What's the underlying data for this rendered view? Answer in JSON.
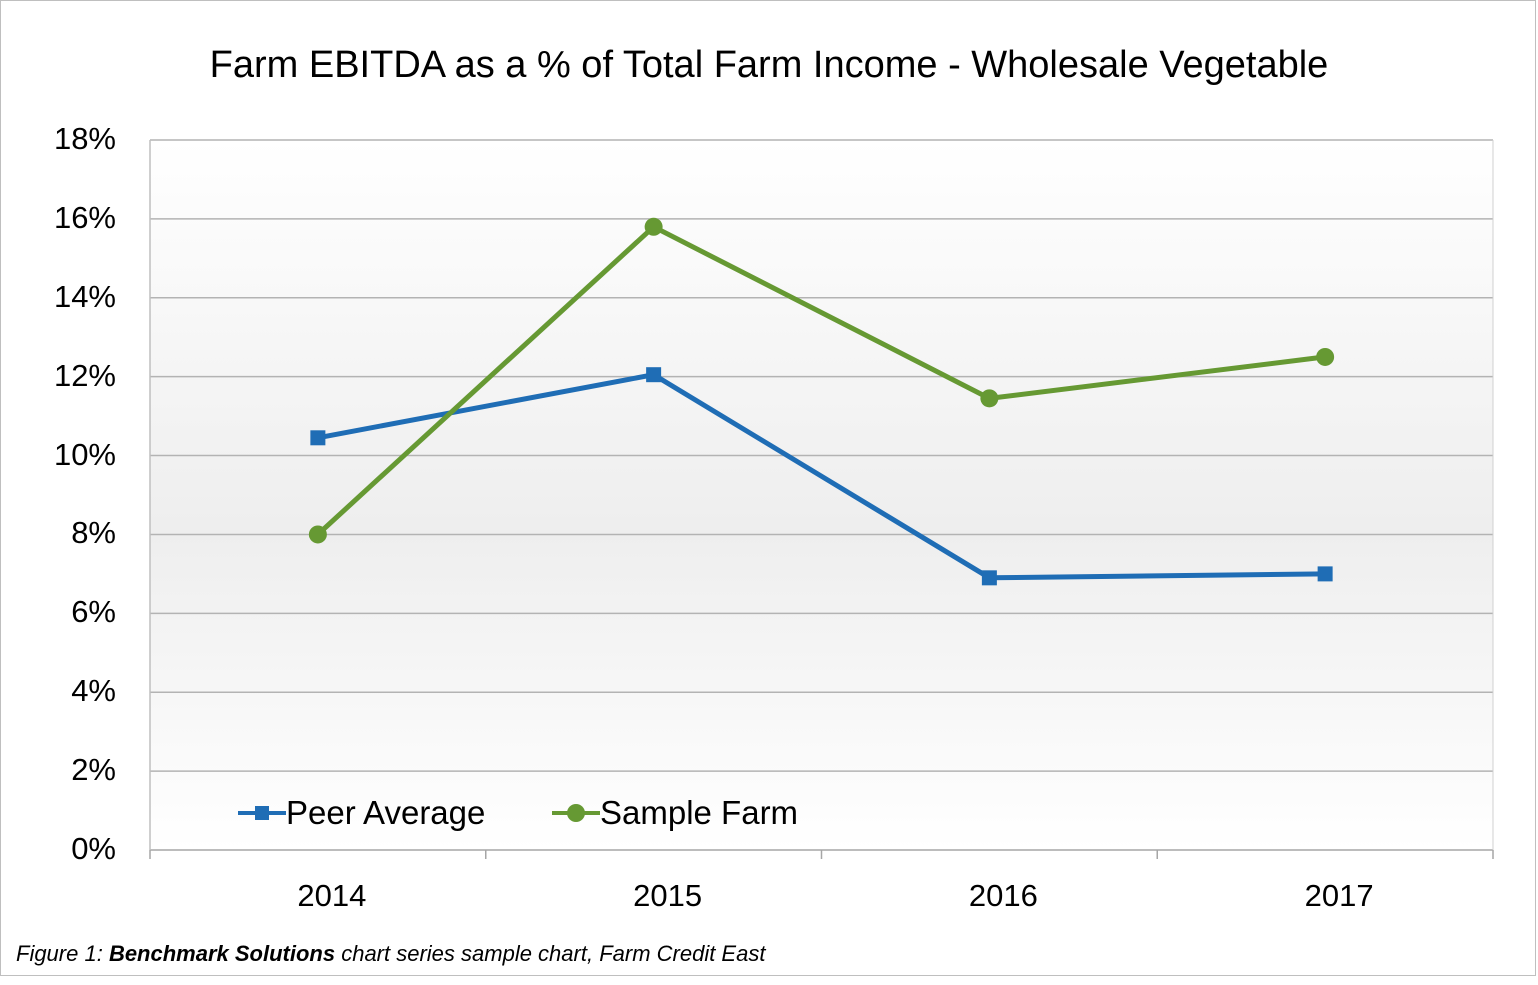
{
  "caption": {
    "prefix": "Figure 1: ",
    "bold": "Benchmark Solutions",
    "suffix": " chart series sample chart, Farm Credit East"
  },
  "chart_data": {
    "type": "line",
    "title": "Farm EBITDA as a % of Total Farm Income - Wholesale Vegetable",
    "xlabel": "",
    "ylabel": "",
    "categories": [
      "2014",
      "2015",
      "2016",
      "2017"
    ],
    "ylim": [
      0,
      18
    ],
    "yticks": [
      "0%",
      "2%",
      "4%",
      "6%",
      "8%",
      "10%",
      "12%",
      "14%",
      "16%",
      "18%"
    ],
    "grid": true,
    "legend_position": "bottom-left",
    "series": [
      {
        "name": "Peer Average",
        "values": [
          10.45,
          12.05,
          6.9,
          7.0
        ],
        "color": "#1f6db5",
        "marker": "square"
      },
      {
        "name": "Sample Farm",
        "values": [
          8.0,
          15.8,
          11.45,
          12.5
        ],
        "color": "#669933",
        "marker": "circle"
      }
    ]
  }
}
